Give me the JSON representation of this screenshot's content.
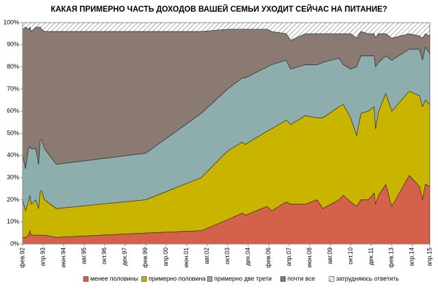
{
  "chart_data": {
    "type": "stacked-area",
    "title": "КАКАЯ ПРИМЕРНО ЧАСТЬ ДОХОДОВ ВАШЕЙ СЕМЬИ УХОДИТ СЕЙЧАС НА ПИТАНИЕ?",
    "x": [
      "1992-02",
      "1992-04",
      "1992-06",
      "1992-07",
      "1992-08",
      "1992-11",
      "1993-01",
      "1993-02",
      "1993-03",
      "1993-05",
      "1994-01",
      "1999-02",
      "2002-04",
      "2003-10",
      "2004-08",
      "2004-10",
      "2006-01",
      "2006-04",
      "2007-02",
      "2007-05",
      "2008-03",
      "2008-11",
      "2009-03",
      "2010-02",
      "2010-05",
      "2010-10",
      "2011-02",
      "2011-05",
      "2011-10",
      "2012-02",
      "2012-03",
      "2012-05",
      "2012-10",
      "2013-02",
      "2014-02",
      "2014-09",
      "2014-11",
      "2015-01",
      "2015-04"
    ],
    "series": [
      {
        "name": "менее половины",
        "color": "#d4624b",
        "values": [
          3,
          3,
          4,
          6,
          4,
          4,
          4,
          4,
          4,
          4,
          3,
          5,
          6,
          11,
          14,
          13,
          17,
          15,
          19,
          18,
          18,
          20,
          16,
          20,
          22,
          19,
          17,
          20,
          20,
          23,
          18,
          22,
          27,
          17,
          31,
          26,
          20,
          27,
          26
        ]
      },
      {
        "name": "примерно половина",
        "color": "#c9b500",
        "values": [
          17,
          12,
          15,
          16,
          14,
          16,
          12,
          20,
          20,
          16,
          13,
          15,
          24,
          31,
          32,
          32,
          34,
          37,
          37,
          36,
          40,
          37,
          41,
          42,
          41,
          38,
          32,
          39,
          40,
          39,
          34,
          38,
          41,
          43,
          38,
          41,
          42,
          38,
          37
        ]
      },
      {
        "name": "примерно две трети",
        "color": "#8eadad",
        "values": [
          20,
          19,
          24,
          22,
          25,
          23,
          20,
          23,
          23,
          23,
          20,
          21,
          29,
          28,
          29,
          30,
          29,
          29,
          27,
          25,
          23,
          24,
          25,
          22,
          18,
          22,
          31,
          26,
          25,
          23,
          28,
          22,
          17,
          23,
          19,
          21,
          21,
          24,
          23
        ]
      },
      {
        "name": "почти все",
        "color": "#8a7a72",
        "values": [
          57,
          64,
          54,
          54,
          53,
          55,
          62,
          51,
          50,
          53,
          60,
          55,
          37,
          27,
          22,
          22,
          17,
          15,
          12,
          13,
          14,
          14,
          13,
          11,
          14,
          16,
          13,
          11,
          10,
          10,
          13,
          13,
          10,
          10,
          7,
          6,
          10,
          6,
          8
        ]
      },
      {
        "name": "затрудняюсь ответить",
        "color": "#ffffff",
        "hatch": true,
        "values": [
          3,
          2,
          3,
          2,
          4,
          2,
          2,
          2,
          3,
          4,
          4,
          4,
          4,
          3,
          3,
          3,
          3,
          4,
          5,
          8,
          5,
          5,
          5,
          5,
          5,
          5,
          7,
          4,
          5,
          5,
          7,
          5,
          5,
          7,
          5,
          6,
          7,
          5,
          6
        ]
      }
    ],
    "xlim": [
      "1992-02",
      "2015-04"
    ],
    "xticks": [
      {
        "value": "1992-02",
        "label": "фев.92"
      },
      {
        "value": "1993-04",
        "label": "апр.93"
      },
      {
        "value": "1994-06",
        "label": "июн.94"
      },
      {
        "value": "1995-08",
        "label": "авг.95"
      },
      {
        "value": "1996-10",
        "label": "окт.96"
      },
      {
        "value": "1997-12",
        "label": "дек.97"
      },
      {
        "value": "1999-02",
        "label": "фев.99"
      },
      {
        "value": "2000-04",
        "label": "апр.00"
      },
      {
        "value": "2001-06",
        "label": "июн.01"
      },
      {
        "value": "2002-08",
        "label": "авг.02"
      },
      {
        "value": "2003-10",
        "label": "окт.03"
      },
      {
        "value": "2004-12",
        "label": "дек.04"
      },
      {
        "value": "2006-02",
        "label": "фев.06"
      },
      {
        "value": "2007-04",
        "label": "апр.07"
      },
      {
        "value": "2008-06",
        "label": "июн.08"
      },
      {
        "value": "2009-08",
        "label": "авг.09"
      },
      {
        "value": "2010-10",
        "label": "окт.10"
      },
      {
        "value": "2011-12",
        "label": "дек.11"
      },
      {
        "value": "2013-02",
        "label": "фев.13"
      },
      {
        "value": "2014-04",
        "label": "апр.14"
      },
      {
        "value": "2015-04",
        "label": "апр.15"
      }
    ],
    "ylim": [
      0,
      100
    ],
    "yticks": [
      {
        "value": 0,
        "label": "0%"
      },
      {
        "value": 10,
        "label": "10%"
      },
      {
        "value": 20,
        "label": "20%"
      },
      {
        "value": 30,
        "label": "30%"
      },
      {
        "value": 40,
        "label": "40%"
      },
      {
        "value": 50,
        "label": "50%"
      },
      {
        "value": 60,
        "label": "60%"
      },
      {
        "value": 70,
        "label": "70%"
      },
      {
        "value": 80,
        "label": "80%"
      },
      {
        "value": 90,
        "label": "90%"
      },
      {
        "value": 100,
        "label": "100%"
      }
    ],
    "legend": "bottom"
  }
}
